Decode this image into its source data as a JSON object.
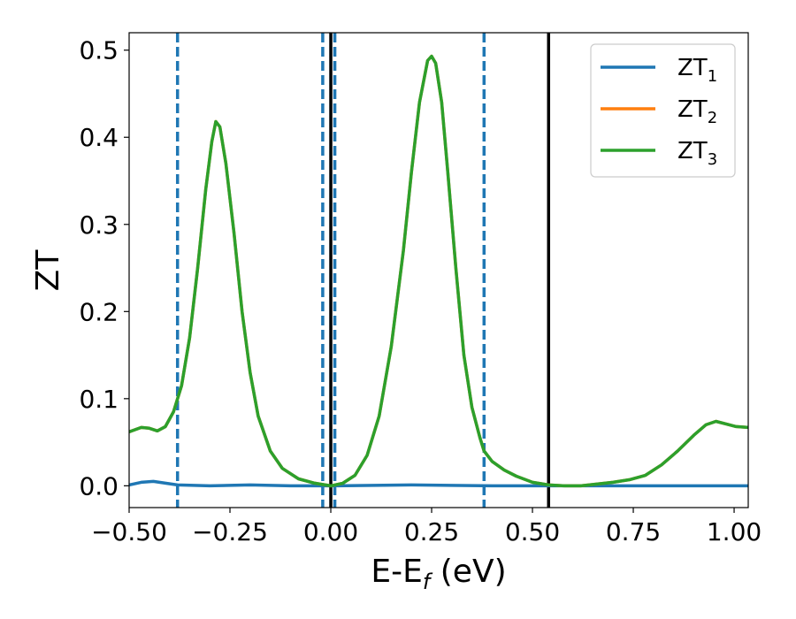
{
  "chart_data": {
    "type": "line",
    "xlabel": {
      "main": "E-E",
      "sub": "f",
      "unit": " (eV)"
    },
    "ylabel": "ZT",
    "xlim": [
      -0.5,
      1.035
    ],
    "ylim": [
      -0.025,
      0.52
    ],
    "xticks": [
      -0.5,
      -0.25,
      0.0,
      0.25,
      0.5,
      0.75,
      1.0
    ],
    "xtick_labels": [
      "−0.50",
      "−0.25",
      "0.00",
      "0.25",
      "0.50",
      "0.75",
      "1.00"
    ],
    "yticks": [
      0.0,
      0.1,
      0.2,
      0.3,
      0.4,
      0.5
    ],
    "ytick_labels": [
      "0.0",
      "0.1",
      "0.2",
      "0.3",
      "0.4",
      "0.5"
    ],
    "grid": false,
    "legend_position": "top-right",
    "vlines_dashed": [
      -0.38,
      -0.02,
      0.01,
      0.38
    ],
    "vlines_solid": [
      0.0,
      0.54
    ],
    "series": [
      {
        "name": "ZT",
        "sub": "1",
        "color": "#1f77b4",
        "points": [
          [
            -0.5,
            0.001
          ],
          [
            -0.47,
            0.004
          ],
          [
            -0.44,
            0.005
          ],
          [
            -0.41,
            0.003
          ],
          [
            -0.38,
            0.001
          ],
          [
            -0.3,
            0.0
          ],
          [
            -0.2,
            0.001
          ],
          [
            -0.1,
            0.0
          ],
          [
            0.0,
            0.0
          ],
          [
            0.2,
            0.001
          ],
          [
            0.4,
            0.0
          ],
          [
            0.6,
            0.0
          ],
          [
            0.8,
            0.0
          ],
          [
            1.035,
            0.0
          ]
        ]
      },
      {
        "name": "ZT",
        "sub": "2",
        "color": "#ff7f0e",
        "points": [
          [
            -0.5,
            0.062
          ],
          [
            -0.47,
            0.067
          ],
          [
            -0.45,
            0.066
          ],
          [
            -0.43,
            0.063
          ],
          [
            -0.41,
            0.068
          ],
          [
            -0.39,
            0.085
          ],
          [
            -0.37,
            0.115
          ],
          [
            -0.35,
            0.17
          ],
          [
            -0.33,
            0.25
          ],
          [
            -0.31,
            0.34
          ],
          [
            -0.295,
            0.395
          ],
          [
            -0.285,
            0.418
          ],
          [
            -0.275,
            0.412
          ],
          [
            -0.26,
            0.37
          ],
          [
            -0.24,
            0.29
          ],
          [
            -0.22,
            0.2
          ],
          [
            -0.2,
            0.13
          ],
          [
            -0.18,
            0.08
          ],
          [
            -0.15,
            0.04
          ],
          [
            -0.12,
            0.02
          ],
          [
            -0.08,
            0.008
          ],
          [
            -0.04,
            0.003
          ],
          [
            0.0,
            0.0
          ],
          [
            0.03,
            0.003
          ],
          [
            0.06,
            0.012
          ],
          [
            0.09,
            0.035
          ],
          [
            0.12,
            0.08
          ],
          [
            0.15,
            0.16
          ],
          [
            0.18,
            0.27
          ],
          [
            0.2,
            0.36
          ],
          [
            0.22,
            0.44
          ],
          [
            0.24,
            0.488
          ],
          [
            0.25,
            0.493
          ],
          [
            0.26,
            0.485
          ],
          [
            0.275,
            0.44
          ],
          [
            0.29,
            0.36
          ],
          [
            0.31,
            0.25
          ],
          [
            0.33,
            0.15
          ],
          [
            0.35,
            0.09
          ],
          [
            0.37,
            0.055
          ],
          [
            0.38,
            0.04
          ],
          [
            0.4,
            0.028
          ],
          [
            0.43,
            0.018
          ],
          [
            0.46,
            0.011
          ],
          [
            0.5,
            0.004
          ],
          [
            0.54,
            0.001
          ],
          [
            0.58,
            0.0
          ],
          [
            0.62,
            0.0
          ],
          [
            0.66,
            0.002
          ],
          [
            0.7,
            0.004
          ],
          [
            0.74,
            0.007
          ],
          [
            0.78,
            0.012
          ],
          [
            0.82,
            0.024
          ],
          [
            0.86,
            0.04
          ],
          [
            0.9,
            0.058
          ],
          [
            0.93,
            0.07
          ],
          [
            0.955,
            0.074
          ],
          [
            0.98,
            0.071
          ],
          [
            1.005,
            0.068
          ],
          [
            1.035,
            0.067
          ]
        ]
      },
      {
        "name": "ZT",
        "sub": "3",
        "color": "#2ca02c",
        "points": [
          [
            -0.5,
            0.062
          ],
          [
            -0.47,
            0.067
          ],
          [
            -0.45,
            0.066
          ],
          [
            -0.43,
            0.063
          ],
          [
            -0.41,
            0.068
          ],
          [
            -0.39,
            0.085
          ],
          [
            -0.37,
            0.115
          ],
          [
            -0.35,
            0.17
          ],
          [
            -0.33,
            0.25
          ],
          [
            -0.31,
            0.34
          ],
          [
            -0.295,
            0.395
          ],
          [
            -0.285,
            0.418
          ],
          [
            -0.275,
            0.412
          ],
          [
            -0.26,
            0.37
          ],
          [
            -0.24,
            0.29
          ],
          [
            -0.22,
            0.2
          ],
          [
            -0.2,
            0.13
          ],
          [
            -0.18,
            0.08
          ],
          [
            -0.15,
            0.04
          ],
          [
            -0.12,
            0.02
          ],
          [
            -0.08,
            0.008
          ],
          [
            -0.04,
            0.003
          ],
          [
            0.0,
            0.0
          ],
          [
            0.03,
            0.003
          ],
          [
            0.06,
            0.012
          ],
          [
            0.09,
            0.035
          ],
          [
            0.12,
            0.08
          ],
          [
            0.15,
            0.16
          ],
          [
            0.18,
            0.27
          ],
          [
            0.2,
            0.36
          ],
          [
            0.22,
            0.44
          ],
          [
            0.24,
            0.488
          ],
          [
            0.25,
            0.493
          ],
          [
            0.26,
            0.485
          ],
          [
            0.275,
            0.44
          ],
          [
            0.29,
            0.36
          ],
          [
            0.31,
            0.25
          ],
          [
            0.33,
            0.15
          ],
          [
            0.35,
            0.09
          ],
          [
            0.37,
            0.055
          ],
          [
            0.38,
            0.04
          ],
          [
            0.4,
            0.028
          ],
          [
            0.43,
            0.018
          ],
          [
            0.46,
            0.011
          ],
          [
            0.5,
            0.004
          ],
          [
            0.54,
            0.001
          ],
          [
            0.58,
            0.0
          ],
          [
            0.62,
            0.0
          ],
          [
            0.66,
            0.002
          ],
          [
            0.7,
            0.004
          ],
          [
            0.74,
            0.007
          ],
          [
            0.78,
            0.012
          ],
          [
            0.82,
            0.024
          ],
          [
            0.86,
            0.04
          ],
          [
            0.9,
            0.058
          ],
          [
            0.93,
            0.07
          ],
          [
            0.955,
            0.074
          ],
          [
            0.98,
            0.071
          ],
          [
            1.005,
            0.068
          ],
          [
            1.035,
            0.067
          ]
        ]
      }
    ]
  }
}
